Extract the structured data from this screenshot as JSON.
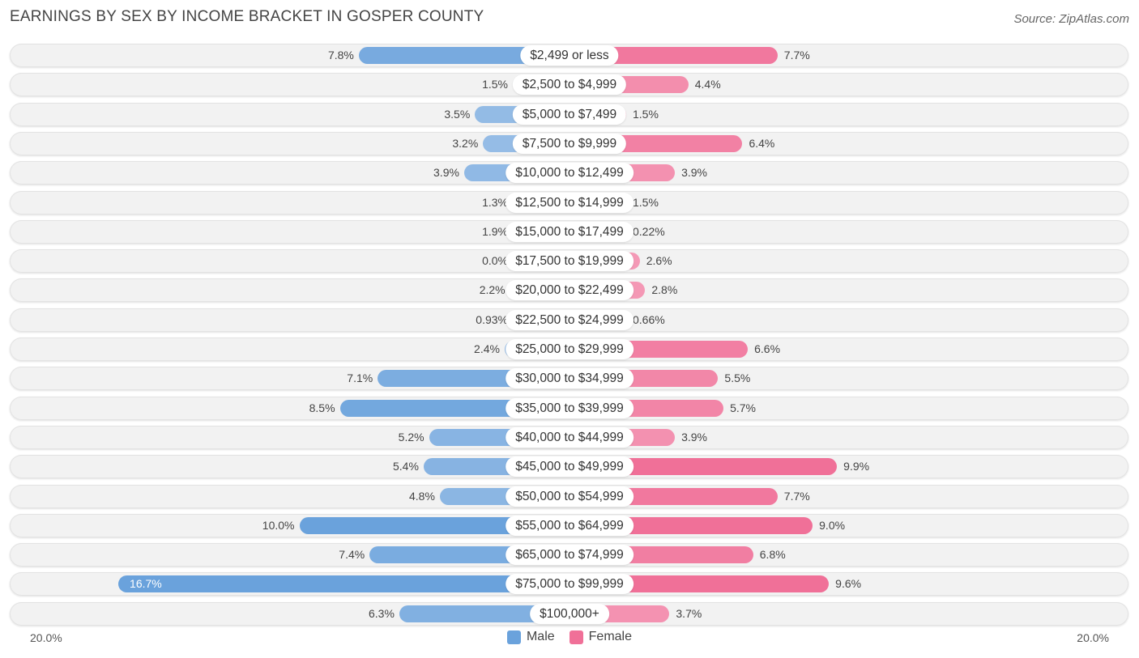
{
  "title": "EARNINGS BY SEX BY INCOME BRACKET IN GOSPER COUNTY",
  "source": "Source: ZipAtlas.com",
  "colors": {
    "male_strong": "#6aa2dc",
    "male_light": "#a9c8ea",
    "female_strong": "#f07098",
    "female_light": "#f6aac2"
  },
  "chart_data": {
    "type": "bar",
    "orientation": "horizontal-diverging",
    "categories": [
      "$2,499 or less",
      "$2,500 to $4,999",
      "$5,000 to $7,499",
      "$7,500 to $9,999",
      "$10,000 to $12,499",
      "$12,500 to $14,999",
      "$15,000 to $17,499",
      "$17,500 to $19,999",
      "$20,000 to $22,499",
      "$22,500 to $24,999",
      "$25,000 to $29,999",
      "$30,000 to $34,999",
      "$35,000 to $39,999",
      "$40,000 to $44,999",
      "$45,000 to $49,999",
      "$50,000 to $54,999",
      "$55,000 to $64,999",
      "$65,000 to $74,999",
      "$75,000 to $99,999",
      "$100,000+"
    ],
    "series": [
      {
        "name": "Male",
        "values": [
          7.8,
          1.5,
          3.5,
          3.2,
          3.9,
          1.3,
          1.9,
          0.0,
          2.2,
          0.93,
          2.4,
          7.1,
          8.5,
          5.2,
          5.4,
          4.8,
          10.0,
          7.4,
          16.7,
          6.3
        ],
        "labels": [
          "7.8%",
          "1.5%",
          "3.5%",
          "3.2%",
          "3.9%",
          "1.3%",
          "1.9%",
          "0.0%",
          "2.2%",
          "0.93%",
          "2.4%",
          "7.1%",
          "8.5%",
          "5.2%",
          "5.4%",
          "4.8%",
          "10.0%",
          "7.4%",
          "16.7%",
          "6.3%"
        ]
      },
      {
        "name": "Female",
        "values": [
          7.7,
          4.4,
          1.5,
          6.4,
          3.9,
          1.5,
          0.22,
          2.6,
          2.8,
          0.66,
          6.6,
          5.5,
          5.7,
          3.9,
          9.9,
          7.7,
          9.0,
          6.8,
          9.6,
          3.7
        ],
        "labels": [
          "7.7%",
          "4.4%",
          "1.5%",
          "6.4%",
          "3.9%",
          "1.5%",
          "0.22%",
          "2.6%",
          "2.8%",
          "0.66%",
          "6.6%",
          "5.5%",
          "5.7%",
          "3.9%",
          "9.9%",
          "7.7%",
          "9.0%",
          "6.8%",
          "9.6%",
          "3.7%"
        ]
      }
    ],
    "xlim": [
      -20,
      20
    ],
    "axis_left_label": "20.0%",
    "axis_right_label": "20.0%",
    "legend": [
      "Male",
      "Female"
    ],
    "legend_position": "bottom-center"
  }
}
